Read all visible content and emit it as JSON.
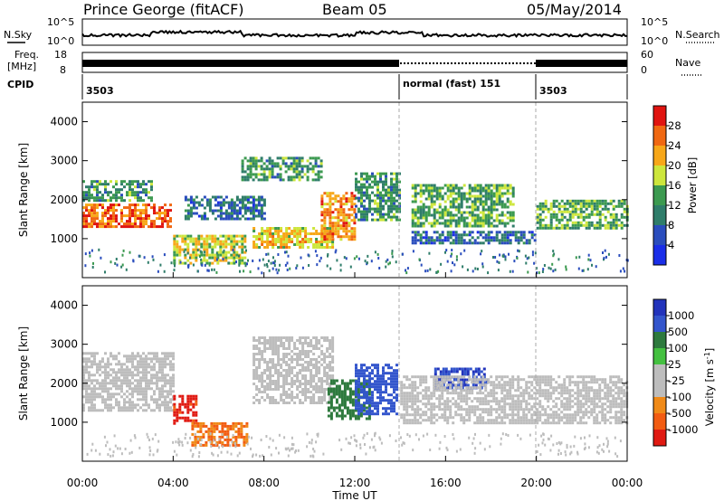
{
  "header": {
    "station": "Prince George (fitACF)",
    "beam": "Beam 05",
    "date": "05/May/2014"
  },
  "noise_panel": {
    "left_label": "N.Sky",
    "right_label": "N.Search",
    "left_ticks": [
      "10^5",
      "10^0"
    ],
    "right_ticks": [
      "10^5",
      "10^0"
    ]
  },
  "freq_panel": {
    "left_label_line1": "Freq.",
    "left_label_line2": "[MHz]",
    "left_ticks": [
      "18",
      "8"
    ],
    "right_label": "Nave",
    "right_ticks": [
      "60",
      "0"
    ]
  },
  "cpid_panel": {
    "label": "CPID",
    "segments": [
      {
        "text": "3503",
        "start_hour": 0
      },
      {
        "text": "normal (fast) 151",
        "start_hour": 14
      },
      {
        "text": "3503",
        "start_hour": 20
      }
    ]
  },
  "range_axis": {
    "label": "Slant Range [km]",
    "ticks": [
      "1000",
      "2000",
      "3000",
      "4000"
    ]
  },
  "time_axis": {
    "label": "Time UT",
    "ticks": [
      "00:00",
      "04:00",
      "08:00",
      "12:00",
      "16:00",
      "20:00",
      "00:00"
    ]
  },
  "power_scale": {
    "label": "Power [dB]",
    "ticks": [
      "4",
      "8",
      "12",
      "16",
      "20",
      "24",
      "28"
    ],
    "colors": [
      "#1a2ee8",
      "#2a4dbd",
      "#2f7d6a",
      "#3c9a50",
      "#cde63c",
      "#f7a719",
      "#f06812",
      "#e01410"
    ]
  },
  "velocity_scale": {
    "label_main": "Velocity  [m s",
    "label_sup": "-1",
    "label_end": "]",
    "ticks": [
      "1000",
      "500",
      "100",
      "25",
      "-25",
      "-100",
      "-500",
      "-1000"
    ],
    "colors": [
      "#2233bb",
      "#3355cc",
      "#2e7a3e",
      "#44c040",
      "#bdbdbd",
      "#bdbdbd",
      "#f08a18",
      "#f25c12",
      "#e01a12"
    ]
  },
  "chart_data": {
    "type": "heatmap",
    "x_unit": "hour UT",
    "xlim": [
      0,
      24
    ],
    "ylim": [
      0,
      4500
    ],
    "grid": false,
    "mode_change_hours": [
      14,
      20
    ],
    "power_echo_bands": [
      {
        "t0": 0.0,
        "t1": 3.9,
        "r0": 1300,
        "r1": 1900,
        "power_db": 26
      },
      {
        "t0": 0.0,
        "t1": 3.0,
        "r0": 2000,
        "r1": 2500,
        "power_db": 12
      },
      {
        "t0": 4.0,
        "t1": 7.2,
        "r0": 400,
        "r1": 1100,
        "power_db": 18
      },
      {
        "t0": 4.5,
        "t1": 8.0,
        "r0": 1500,
        "r1": 2100,
        "power_db": 8
      },
      {
        "t0": 7.0,
        "t1": 10.5,
        "r0": 2500,
        "r1": 3100,
        "power_db": 12
      },
      {
        "t0": 7.5,
        "t1": 11.0,
        "r0": 800,
        "r1": 1300,
        "power_db": 20
      },
      {
        "t0": 10.5,
        "t1": 12.0,
        "r0": 1000,
        "r1": 2200,
        "power_db": 24
      },
      {
        "t0": 12.0,
        "t1": 14.0,
        "r0": 1500,
        "r1": 2700,
        "power_db": 12
      },
      {
        "t0": 14.5,
        "t1": 19.0,
        "r0": 1300,
        "r1": 2400,
        "power_db": 14
      },
      {
        "t0": 14.5,
        "t1": 20.0,
        "r0": 900,
        "r1": 1200,
        "power_db": 8
      },
      {
        "t0": 20.0,
        "t1": 24.0,
        "r0": 1300,
        "r1": 2000,
        "power_db": 14
      }
    ],
    "velocity_echo_bands": [
      {
        "t0": 0.0,
        "t1": 4.0,
        "r0": 1300,
        "r1": 2800,
        "velocity_ms": 0
      },
      {
        "t0": 4.0,
        "t1": 5.0,
        "r0": 1000,
        "r1": 1700,
        "velocity_ms": -1000
      },
      {
        "t0": 4.8,
        "t1": 7.3,
        "r0": 400,
        "r1": 1000,
        "velocity_ms": -500
      },
      {
        "t0": 7.5,
        "t1": 11.0,
        "r0": 1500,
        "r1": 3200,
        "velocity_ms": 0
      },
      {
        "t0": 10.8,
        "t1": 12.6,
        "r0": 1100,
        "r1": 2100,
        "velocity_ms": 100
      },
      {
        "t0": 12.0,
        "t1": 13.8,
        "r0": 1200,
        "r1": 2500,
        "velocity_ms": 600
      },
      {
        "t0": 15.5,
        "t1": 17.8,
        "r0": 1900,
        "r1": 2400,
        "velocity_ms": 800
      },
      {
        "t0": 14.0,
        "t1": 24.0,
        "r0": 1000,
        "r1": 2200,
        "velocity_ms": 0
      }
    ]
  }
}
